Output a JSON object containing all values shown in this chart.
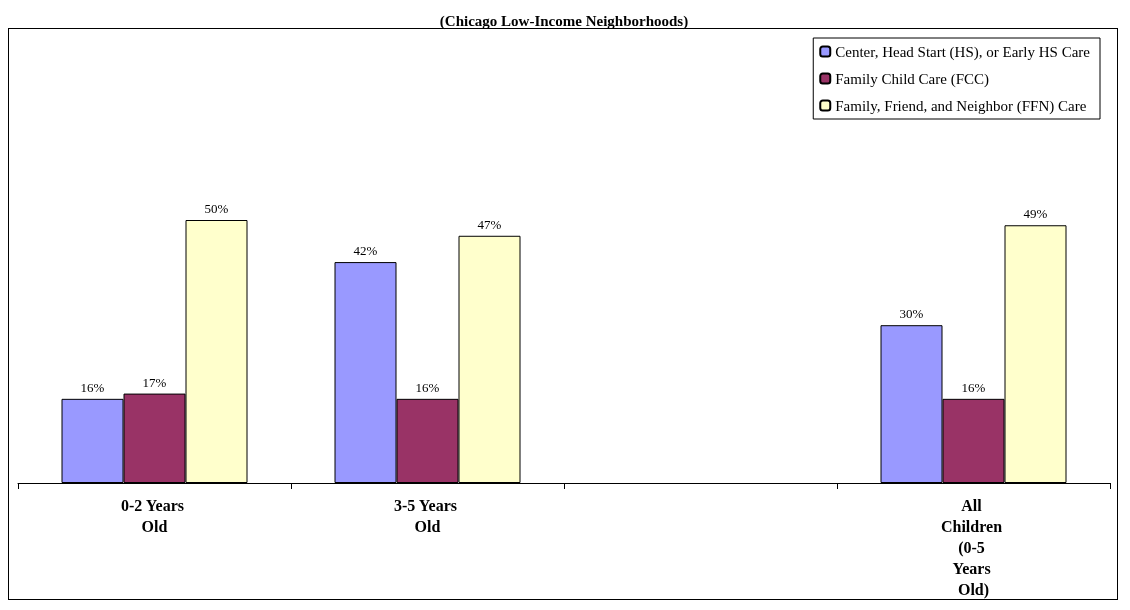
{
  "chart_data": {
    "type": "bar",
    "title": "(Chicago Low-Income Neighborhoods)",
    "categories": [
      "0-2 Years Old",
      "3-5 Years Old",
      null,
      "All Children (0-5 Years Old)"
    ],
    "series": [
      {
        "name": "Center, Head Start (HS), or Early HS Care",
        "color": "#9999ff",
        "values": [
          16,
          42,
          null,
          30
        ],
        "value_labels": [
          "16%",
          "42%",
          null,
          "30%"
        ]
      },
      {
        "name": "Family Child Care (FCC)",
        "color": "#993366",
        "values": [
          17,
          16,
          null,
          16
        ],
        "value_labels": [
          "17%",
          "16%",
          null,
          "16%"
        ]
      },
      {
        "name": "Family, Friend, and Neighbor (FFN) Care",
        "color": "#ffffcc",
        "values": [
          50,
          47,
          null,
          49
        ],
        "value_labels": [
          "50%",
          "47%",
          null,
          "49%"
        ]
      }
    ],
    "legend": "top right",
    "grid": false
  }
}
